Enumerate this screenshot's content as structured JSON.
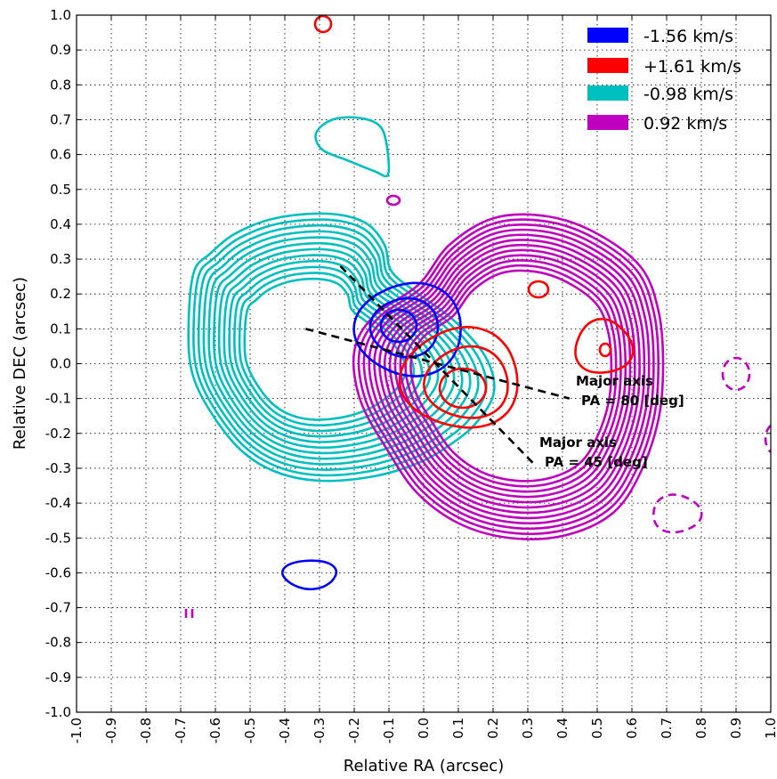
{
  "chart_data": {
    "type": "contour",
    "xlabel": "Relative RA (arcsec)",
    "ylabel": "Relative DEC (arcsec)",
    "xlim": [
      -1.0,
      1.0
    ],
    "ylim": [
      -1.0,
      1.0
    ],
    "x_ticks": [
      "-1.0",
      "-0.9",
      "-0.8",
      "-0.7",
      "-0.6",
      "-0.5",
      "-0.4",
      "-0.3",
      "-0.2",
      "-0.1",
      "0.0",
      "0.1",
      "0.2",
      "0.3",
      "0.4",
      "0.5",
      "0.6",
      "0.7",
      "0.8",
      "0.9",
      "1.0"
    ],
    "y_ticks": [
      "1.0",
      "0.9",
      "0.8",
      "0.7",
      "0.6",
      "0.5",
      "0.4",
      "0.3",
      "0.2",
      "0.1",
      "0.0",
      "-0.1",
      "-0.2",
      "-0.3",
      "-0.4",
      "-0.5",
      "-0.6",
      "-0.7",
      "-0.8",
      "-0.9",
      "-1.0"
    ],
    "grid": true,
    "legend_position": "top-right",
    "legend": [
      {
        "label": "-1.56 km/s",
        "color": "#0000ff"
      },
      {
        "label": "+1.61 km/s",
        "color": "#ff0000"
      },
      {
        "label": "-0.98 km/s",
        "color": "#00bfbf"
      },
      {
        "label": "0.92 km/s",
        "color": "#bf00bf"
      }
    ],
    "annotations": [
      {
        "line1": "Major axis",
        "line2": "PA = 80 [deg]"
      },
      {
        "line1": "Major axis",
        "line2": "PA = 45 [deg]"
      }
    ],
    "major_axes": [
      {
        "pa_deg": 80,
        "from": [
          -0.34,
          0.1
        ],
        "to": [
          0.42,
          -0.1
        ]
      },
      {
        "pa_deg": 45,
        "from": [
          -0.24,
          0.28
        ],
        "to": [
          0.32,
          -0.29
        ]
      }
    ],
    "series": [
      {
        "color": "#00bfbf",
        "contours": [
          {
            "cx": -0.07,
            "cy": 0.68,
            "rx": 0.2,
            "ry": 0.2,
            "shape": [
              [
                -0.31,
                0.65
              ],
              [
                -0.26,
                0.7
              ],
              [
                -0.17,
                0.7
              ],
              [
                -0.13,
                0.67
              ],
              [
                -0.12,
                0.6
              ],
              [
                -0.12,
                0.54
              ],
              [
                -0.16,
                0.57
              ],
              [
                -0.24,
                0.61
              ],
              [
                -0.3,
                0.62
              ]
            ],
            "count": 1
          },
          {
            "kind": "lobe",
            "count": 12
          }
        ]
      },
      {
        "color": "#bf00bf",
        "contours": [
          {
            "kind": "ring",
            "count": 12
          }
        ]
      },
      {
        "color": "#0000ff",
        "contours": [
          {
            "kind": "blob",
            "count": 4
          }
        ]
      },
      {
        "color": "#ff0000",
        "contours": [
          {
            "kind": "blob",
            "count": 4
          }
        ]
      }
    ]
  }
}
